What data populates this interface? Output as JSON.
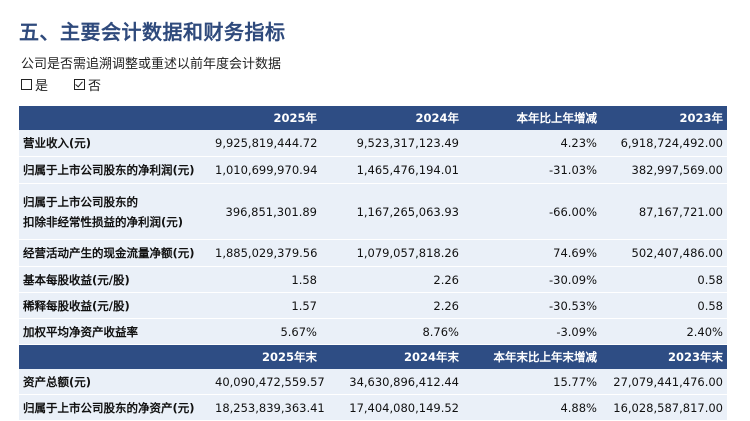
{
  "section_title": "五、主要会计数据和财务指标",
  "question": "公司是否需追溯调整或重述以前年度会计数据",
  "options": [
    {
      "label": "是",
      "checked": false
    },
    {
      "label": "否",
      "checked": true
    }
  ],
  "table": {
    "header1": [
      "",
      "2025年",
      "2024年",
      "本年比上年增减",
      "2023年"
    ],
    "rows1": [
      {
        "item": [
          "营业收入(元)"
        ],
        "v2025": "9,925,819,444.72",
        "v2024": "9,523,317,123.49",
        "change": "4.23%",
        "v2023": "6,918,724,492.00"
      },
      {
        "item": [
          "归属于上市公司股东的净利润(元)"
        ],
        "v2025": "1,010,699,970.94",
        "v2024": "1,465,476,194.01",
        "change": "-31.03%",
        "v2023": "382,997,569.00"
      },
      {
        "item": [
          "归属于上市公司股东的",
          "扣除非经常性损益的净利润(元)"
        ],
        "v2025": "396,851,301.89",
        "v2024": "1,167,265,063.93",
        "change": "-66.00%",
        "v2023": "87,167,721.00"
      },
      {
        "item": [
          "经营活动产生的现金流量净额(元)"
        ],
        "v2025": "1,885,029,379.56",
        "v2024": "1,079,057,818.26",
        "change": "74.69%",
        "v2023": "502,407,486.00"
      },
      {
        "item": [
          "基本每股收益(元/股)"
        ],
        "v2025": "1.58",
        "v2024": "2.26",
        "change": "-30.09%",
        "v2023": "0.58"
      },
      {
        "item": [
          "稀释每股收益(元/股)"
        ],
        "v2025": "1.57",
        "v2024": "2.26",
        "change": "-30.53%",
        "v2023": "0.58"
      },
      {
        "item": [
          "加权平均净资产收益率"
        ],
        "v2025": "5.67%",
        "v2024": "8.76%",
        "change": "-3.09%",
        "v2023": "2.40%"
      }
    ],
    "header2": [
      "",
      "2025年末",
      "2024年末",
      "本年末比上年末增减",
      "2023年末"
    ],
    "rows2": [
      {
        "item": [
          "资产总额(元)"
        ],
        "v2025": "40,090,472,559.57",
        "v2024": "34,630,896,412.44",
        "change": "15.77%",
        "v2023": "27,079,441,476.00"
      },
      {
        "item": [
          "归属于上市公司股东的净资产(元)"
        ],
        "v2025": "18,253,839,363.41",
        "v2024": "17,404,080,149.52",
        "change": "4.88%",
        "v2023": "16,028,587,817.00"
      }
    ]
  }
}
